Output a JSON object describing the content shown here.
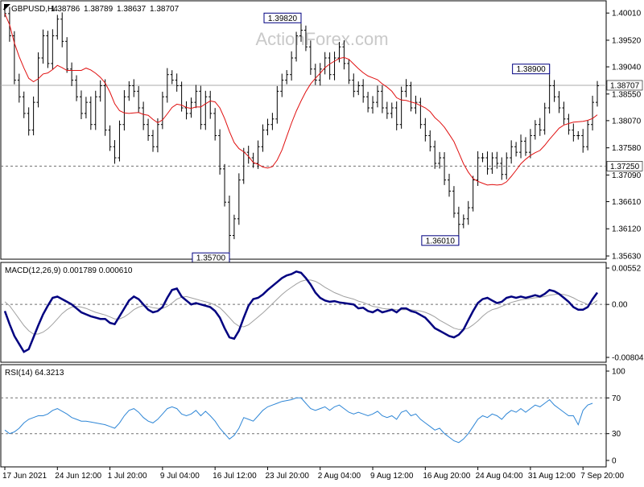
{
  "colors": {
    "background": "#ffffff",
    "bars": "#000000",
    "ma": "#e01010",
    "macd": "#000080",
    "signal": "#a0a0a0",
    "rsi": "#2e86d6",
    "grid_dotted": "#707070",
    "frame": "#000000",
    "annotation": "#000080"
  },
  "watermark": "ActionForex.com",
  "chart_data": [
    {
      "type": "ohlc",
      "title": "GBPUSD,H4",
      "info_values": [
        "1.38786",
        "1.38789",
        "1.38637",
        "1.38707"
      ],
      "ylim": [
        1.3563,
        1.401
      ],
      "y_ticks": [
        1.4001,
        1.3952,
        1.3904,
        1.3855,
        1.3807,
        1.3758,
        1.3709,
        1.3661,
        1.3612,
        1.3563
      ],
      "y_tick_labels": [
        "1.40010",
        "1.39520",
        "1.39040",
        "1.38550",
        "1.38070",
        "1.37580",
        "1.37090",
        "1.36610",
        "1.36120",
        "1.35630"
      ],
      "current_price": 1.38707,
      "current_price_label": "1.38707",
      "support_level": 1.3725,
      "support_label": "1.37250",
      "annotations": [
        {
          "label": "1.35700",
          "index": 47,
          "value": 1.357
        },
        {
          "label": "1.39820",
          "index": 62,
          "value": 1.3982
        },
        {
          "label": "1.36010",
          "index": 95,
          "value": 1.3601
        },
        {
          "label": "1.38900",
          "index": 114,
          "value": 1.389
        }
      ],
      "closes": [
        1.4,
        1.396,
        1.388,
        1.385,
        1.382,
        1.379,
        1.384,
        1.392,
        1.396,
        1.391,
        1.396,
        1.399,
        1.395,
        1.39,
        1.388,
        1.385,
        1.382,
        1.384,
        1.38,
        1.385,
        1.387,
        1.379,
        1.376,
        1.374,
        1.38,
        1.385,
        1.387,
        1.386,
        1.383,
        1.38,
        1.378,
        1.376,
        1.38,
        1.385,
        1.389,
        1.388,
        1.387,
        1.383,
        1.382,
        1.384,
        1.386,
        1.38,
        1.385,
        1.382,
        1.378,
        1.372,
        1.366,
        1.36,
        1.363,
        1.37,
        1.375,
        1.374,
        1.373,
        1.376,
        1.379,
        1.38,
        1.381,
        1.386,
        1.388,
        1.389,
        1.392,
        1.396,
        1.397,
        1.394,
        1.39,
        1.388,
        1.39,
        1.392,
        1.389,
        1.392,
        1.394,
        1.391,
        1.388,
        1.386,
        1.387,
        1.385,
        1.383,
        1.384,
        1.386,
        1.383,
        1.382,
        1.383,
        1.38,
        1.386,
        1.387,
        1.383,
        1.384,
        1.38,
        1.378,
        1.376,
        1.373,
        1.374,
        1.37,
        1.368,
        1.364,
        1.362,
        1.363,
        1.365,
        1.37,
        1.374,
        1.374,
        1.372,
        1.374,
        1.373,
        1.371,
        1.374,
        1.376,
        1.375,
        1.377,
        1.375,
        1.378,
        1.38,
        1.379,
        1.383,
        1.387,
        1.385,
        1.383,
        1.381,
        1.379,
        1.378,
        1.378,
        1.376,
        1.38,
        1.384,
        1.387
      ]
    },
    {
      "type": "line",
      "title": "MACD(12,26,9) 0.001789 0.000610",
      "ylim": [
        -0.00804,
        0.00552
      ],
      "y_ticks": [
        0.00552,
        0.0,
        -0.00804
      ],
      "y_tick_labels": [
        "0.00552",
        "0.00",
        "-0.00804"
      ],
      "series": [
        {
          "role": "macd",
          "values": [
            -0.001,
            -0.003,
            -0.0048,
            -0.006,
            -0.0072,
            -0.0068,
            -0.005,
            -0.0032,
            -0.0015,
            -0.0002,
            0.001,
            0.0012,
            0.0008,
            0.0004,
            0.0,
            -0.0006,
            -0.0012,
            -0.0015,
            -0.0018,
            -0.002,
            -0.0022,
            -0.0022,
            -0.0028,
            -0.003,
            -0.0018,
            -0.0006,
            0.0006,
            0.0012,
            0.0008,
            0.0,
            -0.0008,
            -0.0012,
            -0.001,
            -0.0004,
            0.001,
            0.0022,
            0.0024,
            0.0012,
            0.0006,
            0.0,
            0.0002,
            0.0,
            -0.0002,
            -0.0004,
            -0.001,
            -0.002,
            -0.0036,
            -0.005,
            -0.0052,
            -0.004,
            -0.002,
            -0.0002,
            0.0008,
            0.001,
            0.0015,
            0.0022,
            0.0028,
            0.0034,
            0.004,
            0.0044,
            0.0046,
            0.005,
            0.0048,
            0.004,
            0.003,
            0.0018,
            0.001,
            0.0006,
            0.0004,
            0.0005,
            0.0003,
            0.0002,
            0.0001,
            0.0,
            -0.0006,
            -0.0005,
            -0.001,
            -0.0012,
            -0.0008,
            -0.0012,
            -0.001,
            -0.0008,
            -0.0012,
            -0.0006,
            -0.0006,
            -0.001,
            -0.0012,
            -0.0016,
            -0.002,
            -0.0028,
            -0.0036,
            -0.004,
            -0.0044,
            -0.0048,
            -0.005,
            -0.0046,
            -0.0038,
            -0.0024,
            -0.001,
            0.0002,
            0.0008,
            0.001,
            0.0006,
            0.0002,
            0.0004,
            0.001,
            0.0012,
            0.001,
            0.0012,
            0.001,
            0.0012,
            0.0014,
            0.0012,
            0.0016,
            0.0022,
            0.002,
            0.0016,
            0.001,
            0.0004,
            -0.0004,
            -0.0008,
            -0.0008,
            -0.0004,
            0.0008,
            0.0018
          ]
        },
        {
          "role": "signal",
          "values": [
            0.0004,
            -0.0002,
            -0.0012,
            -0.0022,
            -0.0032,
            -0.004,
            -0.0045,
            -0.0045,
            -0.0042,
            -0.0037,
            -0.003,
            -0.0022,
            -0.0014,
            -0.0008,
            -0.0004,
            -0.0003,
            -0.0004,
            -0.0006,
            -0.0009,
            -0.0012,
            -0.0014,
            -0.0016,
            -0.0019,
            -0.0022,
            -0.0022,
            -0.0019,
            -0.0014,
            -0.0008,
            -0.0004,
            -0.0002,
            -0.0003,
            -0.0005,
            -0.0006,
            -0.0006,
            -0.0003,
            0.0002,
            0.0008,
            0.0011,
            0.0012,
            0.001,
            0.0008,
            0.0006,
            0.0004,
            0.0002,
            -0.0001,
            -0.0005,
            -0.0012,
            -0.002,
            -0.0028,
            -0.0033,
            -0.0034,
            -0.0031,
            -0.0025,
            -0.0019,
            -0.0013,
            -0.0006,
            0.0001,
            0.0008,
            0.0015,
            0.0021,
            0.0026,
            0.0031,
            0.0035,
            0.0037,
            0.0037,
            0.0035,
            0.0031,
            0.0026,
            0.0022,
            0.0018,
            0.0015,
            0.0012,
            0.001,
            0.0008,
            0.0005,
            0.0003,
            0.0,
            -0.0003,
            -0.0004,
            -0.0006,
            -0.0007,
            -0.0007,
            -0.0008,
            -0.0008,
            -0.0008,
            -0.0008,
            -0.0009,
            -0.001,
            -0.0012,
            -0.0015,
            -0.0019,
            -0.0024,
            -0.0028,
            -0.0032,
            -0.0036,
            -0.0038,
            -0.0038,
            -0.0036,
            -0.0031,
            -0.0025,
            -0.0018,
            -0.0012,
            -0.0008,
            -0.0006,
            -0.0003,
            0.0,
            0.0003,
            0.0005,
            0.0007,
            0.0008,
            0.0009,
            0.001,
            0.0011,
            0.0012,
            0.0014,
            0.0015,
            0.0016,
            0.0015,
            0.0013,
            0.001,
            0.0006,
            0.0003,
            0.0,
            0.0001,
            0.0006
          ]
        }
      ]
    },
    {
      "type": "line",
      "title": "RSI(14) 64.3213",
      "ylim": [
        0,
        100
      ],
      "y_ticks": [
        100,
        70,
        30,
        0
      ],
      "y_tick_labels": [
        "100",
        "70",
        "30",
        "0"
      ],
      "levels": [
        70,
        30
      ],
      "series": [
        {
          "role": "rsi",
          "values": [
            34,
            30,
            32,
            36,
            42,
            46,
            48,
            50,
            50,
            52,
            56,
            58,
            55,
            52,
            48,
            46,
            44,
            44,
            43,
            42,
            41,
            40,
            38,
            36,
            42,
            50,
            56,
            58,
            54,
            48,
            44,
            42,
            46,
            52,
            58,
            60,
            58,
            52,
            50,
            52,
            56,
            50,
            55,
            50,
            44,
            36,
            30,
            24,
            28,
            36,
            48,
            46,
            44,
            50,
            56,
            60,
            62,
            64,
            66,
            67,
            68,
            70,
            70,
            64,
            58,
            56,
            58,
            60,
            56,
            60,
            62,
            58,
            54,
            52,
            54,
            52,
            50,
            52,
            55,
            50,
            48,
            50,
            46,
            54,
            56,
            50,
            52,
            46,
            42,
            38,
            34,
            36,
            30,
            26,
            22,
            20,
            24,
            30,
            38,
            46,
            50,
            48,
            52,
            50,
            46,
            52,
            56,
            54,
            58,
            54,
            58,
            62,
            60,
            64,
            68,
            62,
            58,
            54,
            50,
            50,
            40,
            56,
            62,
            64
          ]
        }
      ]
    }
  ],
  "x_axis": {
    "labels": [
      "17 Jun 2021",
      "24 Jun 12:00",
      "1 Jul 20:00",
      "9 Jul 04:00",
      "16 Jul 12:00",
      "23 Jul 20:00",
      "2 Aug 04:00",
      "9 Aug 12:00",
      "16 Aug 20:00",
      "24 Aug 04:00",
      "31 Aug 12:00",
      "7 Sep 20:00"
    ],
    "label_indices": [
      0,
      11,
      22,
      33,
      44,
      55,
      66,
      77,
      88,
      99,
      110,
      121
    ]
  }
}
